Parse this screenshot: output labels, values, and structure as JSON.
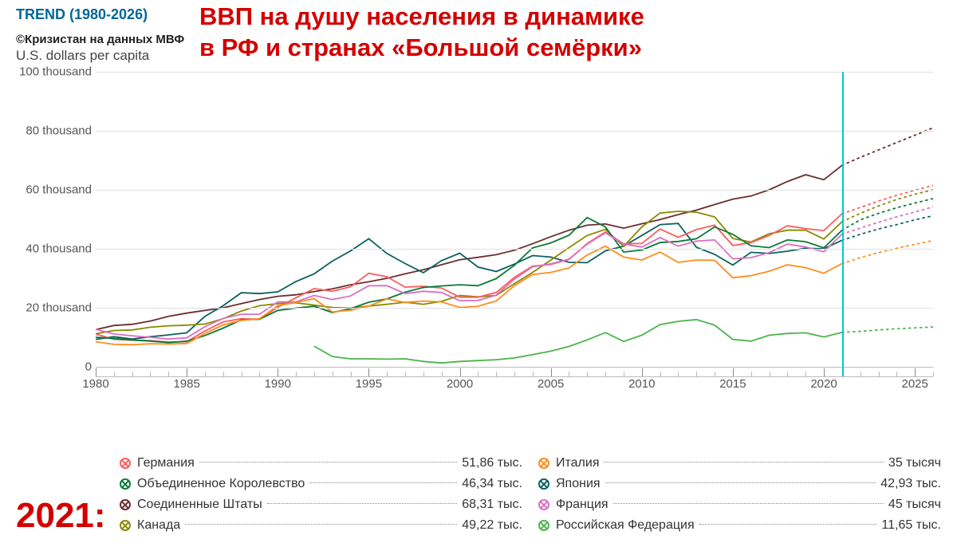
{
  "header": {
    "trend_label": "TREND (1980-2026)",
    "title_line1": "ВВП на душу населения в динамике",
    "title_line2": "в РФ и странах «Большой семёрки»",
    "source": "©Кризистан на данных МВФ",
    "subtitle": "U.S. dollars per capita",
    "title_color": "#d30000",
    "trend_color": "#006699"
  },
  "chart": {
    "type": "line",
    "xlim": [
      1980,
      2026
    ],
    "ylim": [
      0,
      100
    ],
    "y_unit_suffix": " thousand",
    "yticks": [
      0,
      20,
      40,
      60,
      80,
      100
    ],
    "xticks_major": [
      1980,
      1985,
      1990,
      1995,
      2000,
      2005,
      2010,
      2015,
      2020,
      2025
    ],
    "minor_tick_step": 1,
    "vline_year": 2021,
    "vline_color": "#00c8d7",
    "background_color": "#ffffff",
    "grid_color": "#e0e0e0",
    "line_width": 1.8,
    "forecast_dotted_from": 2021,
    "series": [
      {
        "id": "usa",
        "name": "Соединенные Штаты",
        "color": "#6b2e2e",
        "legend_value": "68,31 тыс.",
        "data": [
          12.6,
          14.0,
          14.4,
          15.5,
          17.1,
          18.2,
          19.1,
          20.0,
          21.4,
          22.8,
          23.9,
          24.4,
          25.5,
          26.4,
          27.8,
          28.8,
          30.0,
          31.5,
          32.9,
          34.6,
          36.3,
          37.1,
          38.0,
          39.5,
          41.7,
          44.1,
          46.3,
          48.0,
          48.4,
          47.0,
          48.5,
          49.9,
          51.6,
          53.1,
          55.0,
          56.8,
          57.9,
          60.0,
          62.8,
          65.1,
          63.4,
          68.3,
          71.0,
          73.5,
          76.0,
          78.5,
          81.0
        ]
      },
      {
        "id": "japan",
        "name": "Япония",
        "color": "#0d6060",
        "legend_value": "42,93 тыс.",
        "data": [
          9.3,
          10.2,
          9.4,
          10.2,
          10.8,
          11.5,
          17.1,
          20.7,
          25.1,
          24.8,
          25.4,
          28.9,
          31.5,
          35.8,
          39.3,
          43.4,
          38.4,
          35.0,
          31.9,
          36.0,
          38.5,
          33.8,
          32.3,
          34.8,
          37.7,
          37.2,
          35.4,
          35.3,
          39.3,
          40.9,
          44.5,
          48.2,
          48.6,
          40.5,
          38.1,
          34.5,
          38.8,
          38.4,
          39.2,
          40.2,
          40.0,
          42.9,
          44.9,
          46.7,
          48.2,
          49.8,
          51.2
        ]
      },
      {
        "id": "canada",
        "name": "Канада",
        "color": "#8a8a00",
        "legend_value": "49,22 тыс.",
        "data": [
          11.2,
          12.3,
          12.5,
          13.4,
          13.9,
          14.1,
          14.5,
          16.3,
          18.9,
          20.7,
          21.4,
          21.7,
          20.9,
          20.1,
          19.9,
          20.6,
          21.2,
          21.9,
          21.2,
          22.2,
          24.2,
          23.7,
          24.2,
          28.2,
          32.0,
          36.2,
          40.4,
          44.5,
          46.6,
          40.8,
          47.4,
          52.1,
          52.7,
          52.4,
          50.8,
          43.5,
          42.3,
          45.1,
          46.3,
          46.3,
          43.3,
          49.2,
          52.0,
          54.5,
          56.7,
          58.5,
          60.0
        ]
      },
      {
        "id": "germany",
        "name": "Германия",
        "color": "#ff5c5c",
        "legend_value": "51,86 тыс.",
        "data": [
          11.1,
          9.3,
          9.0,
          8.9,
          8.4,
          8.5,
          12.2,
          15.2,
          16.3,
          16.1,
          20.2,
          23.4,
          26.5,
          25.6,
          27.1,
          31.7,
          30.5,
          27.0,
          27.3,
          26.7,
          23.6,
          23.6,
          25.2,
          30.3,
          34.1,
          34.7,
          36.4,
          41.8,
          45.7,
          41.7,
          41.8,
          46.7,
          43.9,
          46.5,
          48.0,
          41.1,
          42.1,
          44.5,
          47.8,
          46.8,
          46.2,
          51.9,
          54.0,
          56.2,
          58.1,
          59.8,
          61.5
        ]
      },
      {
        "id": "uk",
        "name": "Объединенное Королевство",
        "color": "#0a7a3a",
        "legend_value": "46,34 тыс.",
        "data": [
          10.0,
          9.6,
          9.1,
          8.7,
          8.2,
          8.7,
          10.6,
          13.1,
          15.9,
          16.1,
          19.1,
          19.9,
          20.5,
          18.4,
          19.7,
          21.9,
          23.0,
          25.3,
          26.9,
          27.4,
          27.8,
          27.5,
          29.9,
          34.4,
          40.3,
          42.0,
          44.6,
          50.6,
          47.4,
          38.9,
          39.6,
          42.1,
          42.5,
          43.4,
          47.4,
          44.9,
          41.0,
          40.4,
          43.0,
          42.4,
          40.3,
          46.3,
          49.8,
          52.0,
          53.9,
          55.5,
          57.0
        ]
      },
      {
        "id": "france",
        "name": "Франция",
        "color": "#d96fc1",
        "legend_value": "45 тысяч",
        "data": [
          12.7,
          11.1,
          10.5,
          10.0,
          9.4,
          9.8,
          13.6,
          16.4,
          17.8,
          17.8,
          22.0,
          22.0,
          24.2,
          22.8,
          24.0,
          27.5,
          27.5,
          24.8,
          25.6,
          25.2,
          22.4,
          22.5,
          24.3,
          29.7,
          33.9,
          34.9,
          36.5,
          41.6,
          45.4,
          41.6,
          40.6,
          43.8,
          40.9,
          42.6,
          43.0,
          36.6,
          37.0,
          38.7,
          41.6,
          40.6,
          39.0,
          45.0,
          47.0,
          49.0,
          50.8,
          52.5,
          54.2
        ]
      },
      {
        "id": "italy",
        "name": "Италия",
        "color": "#ff8c1a",
        "legend_value": "35 тысяч",
        "data": [
          8.5,
          7.6,
          7.5,
          7.8,
          7.7,
          7.9,
          11.3,
          14.2,
          15.7,
          16.3,
          20.7,
          21.8,
          23.1,
          18.6,
          19.2,
          20.6,
          23.0,
          21.8,
          22.3,
          22.0,
          20.1,
          20.5,
          22.3,
          27.5,
          31.3,
          32.0,
          33.5,
          37.9,
          40.9,
          37.2,
          36.2,
          38.9,
          35.4,
          36.2,
          36.1,
          30.2,
          30.9,
          32.4,
          34.6,
          33.6,
          31.7,
          35.0,
          37.0,
          38.7,
          40.2,
          41.5,
          42.8
        ]
      },
      {
        "id": "russia",
        "name": "Российская Федерация",
        "color": "#4db34d",
        "legend_value": "11,65 тыс.",
        "data": [
          null,
          null,
          null,
          null,
          null,
          null,
          null,
          null,
          null,
          null,
          null,
          null,
          7.0,
          3.5,
          2.7,
          2.7,
          2.6,
          2.7,
          1.8,
          1.3,
          1.8,
          2.1,
          2.4,
          3.0,
          4.1,
          5.3,
          6.9,
          9.1,
          11.6,
          8.6,
          10.7,
          14.3,
          15.4,
          16.0,
          14.1,
          9.3,
          8.7,
          10.7,
          11.3,
          11.5,
          10.1,
          11.7,
          12.0,
          12.5,
          12.9,
          13.2,
          13.5
        ]
      }
    ]
  },
  "legend": {
    "year_label": "2021:",
    "left": [
      {
        "key": "germany"
      },
      {
        "key": "uk"
      },
      {
        "key": "usa"
      },
      {
        "key": "canada"
      }
    ],
    "right": [
      {
        "key": "italy"
      },
      {
        "key": "japan"
      },
      {
        "key": "france"
      },
      {
        "key": "russia"
      }
    ]
  }
}
